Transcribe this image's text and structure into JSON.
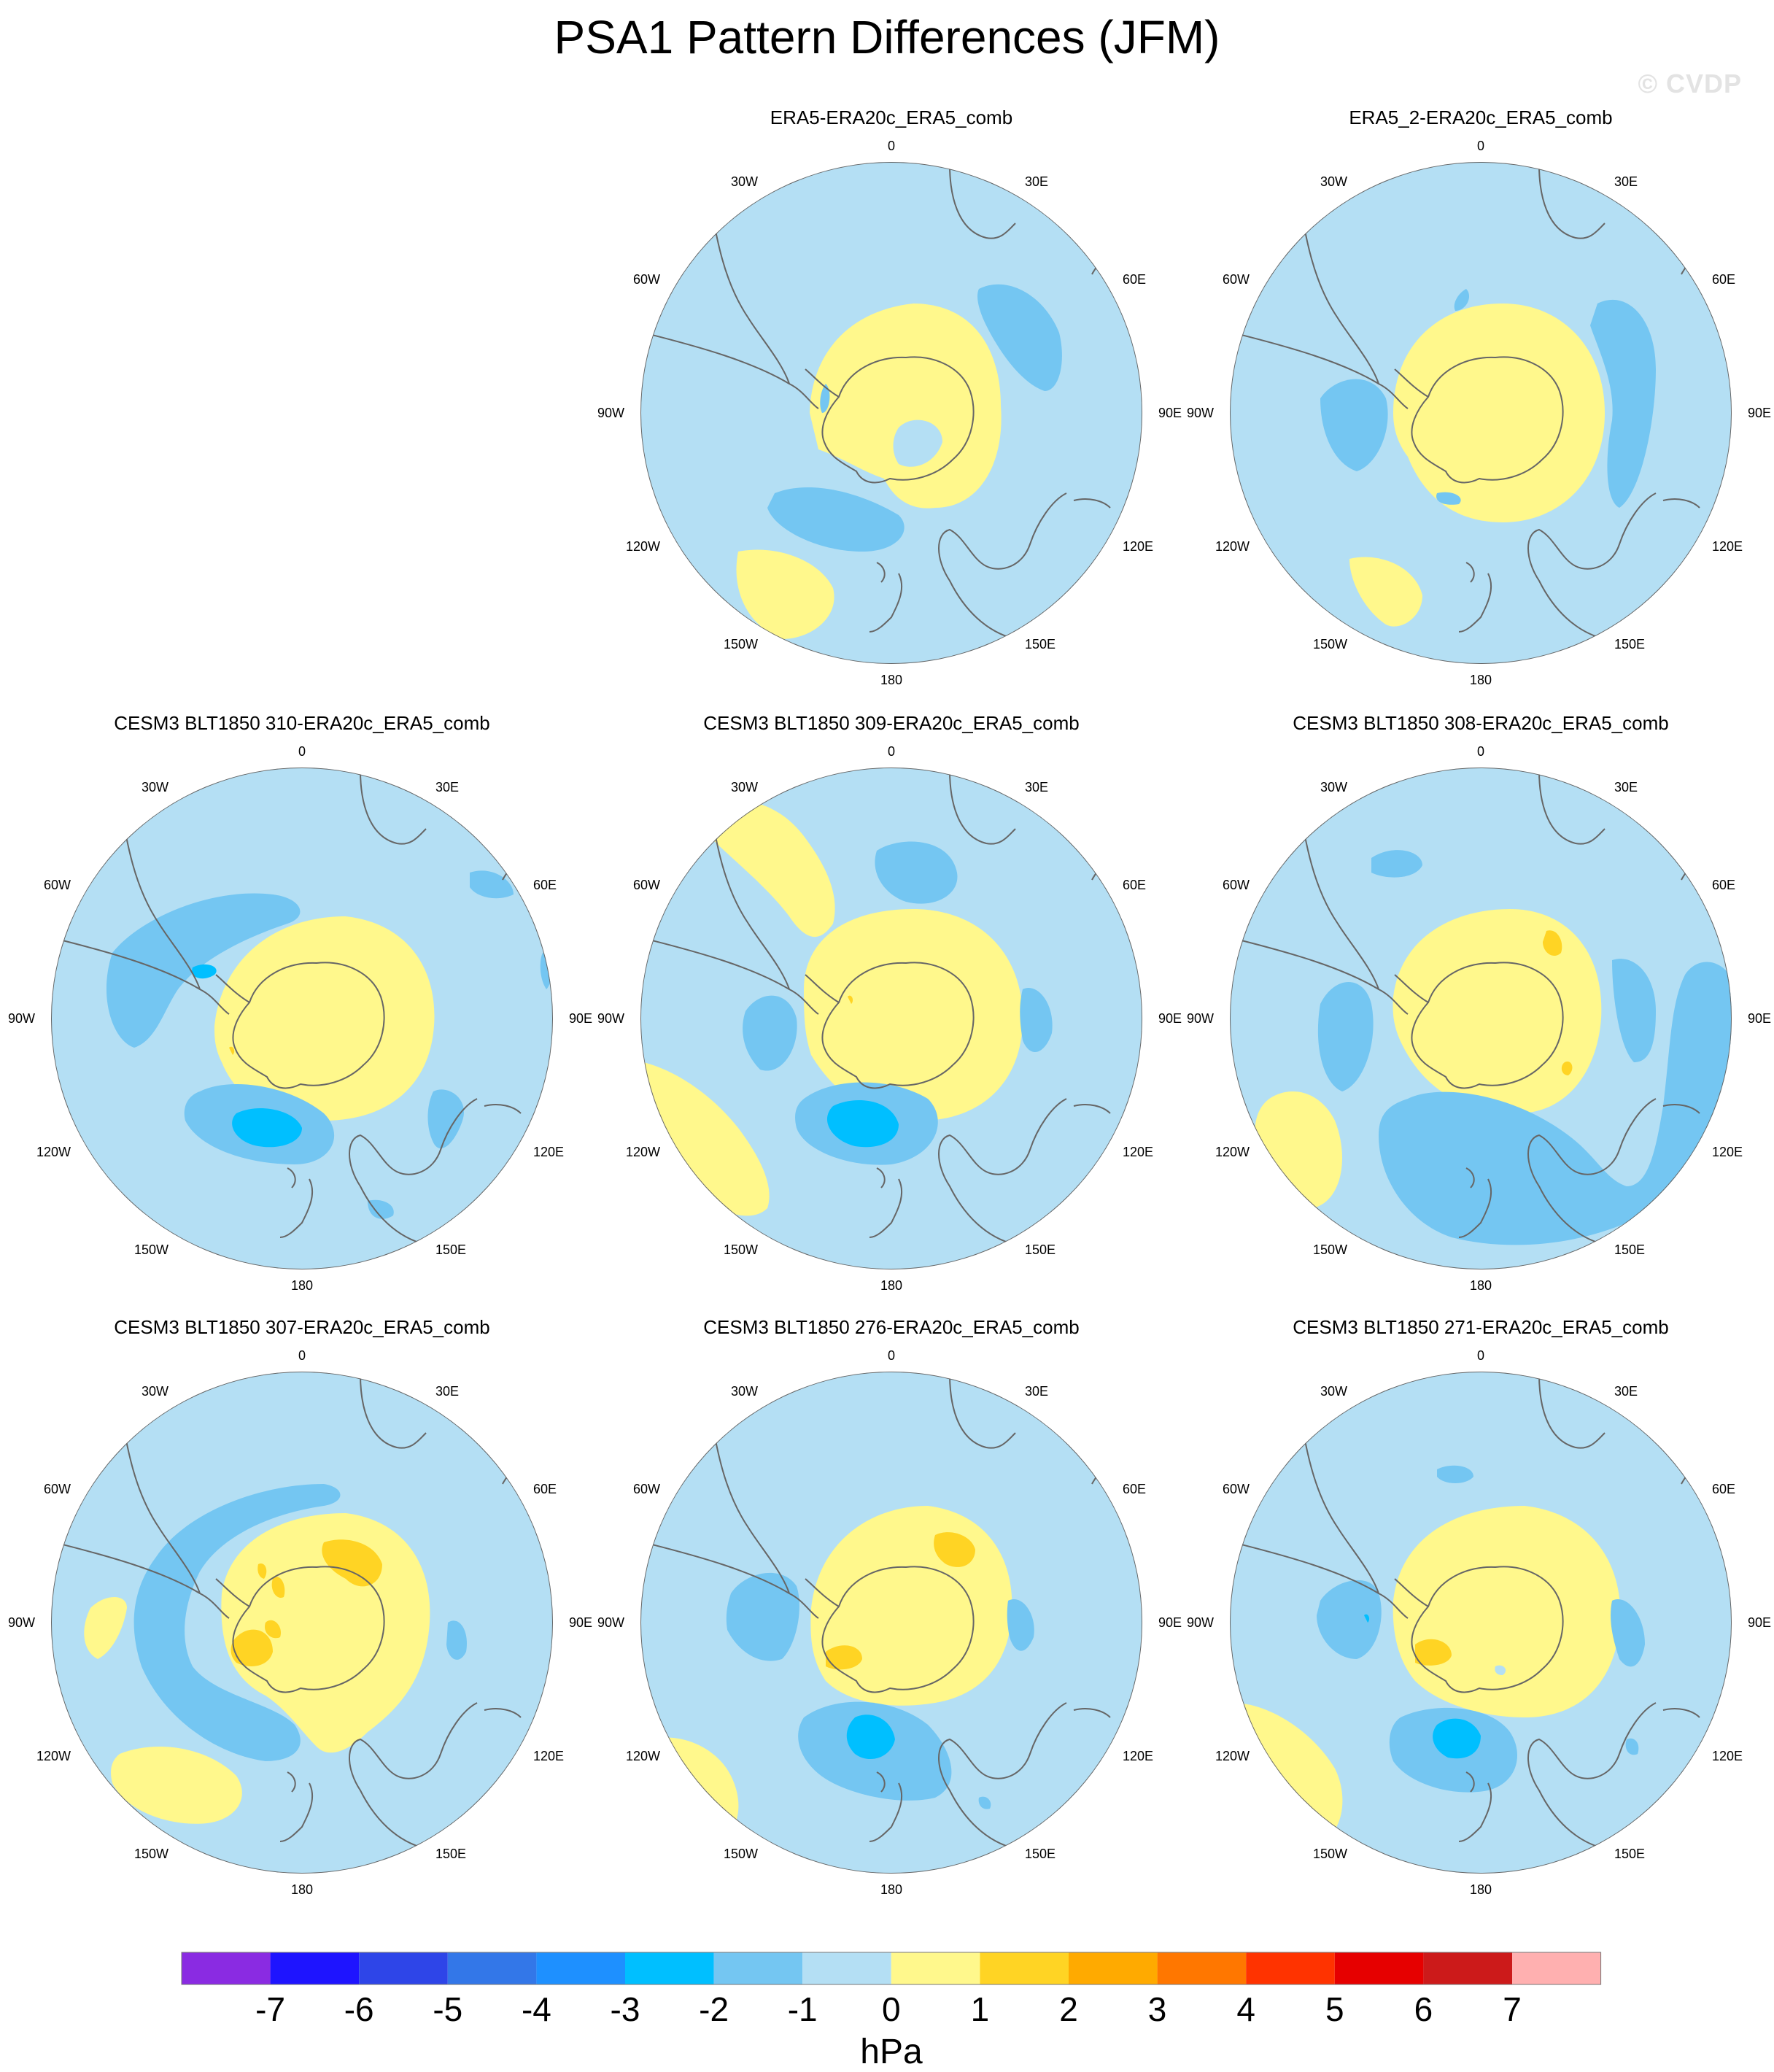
{
  "title": "PSA1 Pattern Differences (JFM)",
  "watermark": "© CVDP",
  "lon_labels": [
    "0",
    "30E",
    "60E",
    "90E",
    "120E",
    "150E",
    "180",
    "150W",
    "120W",
    "90W",
    "60W",
    "30W"
  ],
  "panels": [
    {
      "title": "ERA5-ERA20c_ERA5_comb"
    },
    {
      "title": "ERA5_2-ERA20c_ERA5_comb"
    },
    {
      "title": "CESM3 BLT1850 310-ERA20c_ERA5_comb"
    },
    {
      "title": "CESM3 BLT1850 309-ERA20c_ERA5_comb"
    },
    {
      "title": "CESM3 BLT1850 308-ERA20c_ERA5_comb"
    },
    {
      "title": "CESM3 BLT1850 307-ERA20c_ERA5_comb"
    },
    {
      "title": "CESM3 BLT1850 276-ERA20c_ERA5_comb"
    },
    {
      "title": "CESM3 BLT1850 271-ERA20c_ERA5_comb"
    }
  ],
  "colorbar": {
    "units": "hPa",
    "labels": [
      "-7",
      "-6",
      "-5",
      "-4",
      "-3",
      "-2",
      "-1",
      "0",
      "1",
      "2",
      "3",
      "4",
      "5",
      "6",
      "7"
    ],
    "colors": [
      "#8a2be2",
      "#1e14ff",
      "#2e45e8",
      "#3377e8",
      "#1e90ff",
      "#00bfff",
      "#74c6f2",
      "#b4dff4",
      "#fff88c",
      "#ffd424",
      "#ffaa00",
      "#ff7700",
      "#ff3300",
      "#e60000",
      "#cc1a1a",
      "#ffb0b0"
    ]
  },
  "colors": {
    "background_field": "#b4dff4",
    "neg_1": "#74c6f2",
    "neg_2": "#00bfff",
    "pos_1": "#fff88c",
    "pos_2": "#ffd424",
    "coast": "#666666"
  }
}
